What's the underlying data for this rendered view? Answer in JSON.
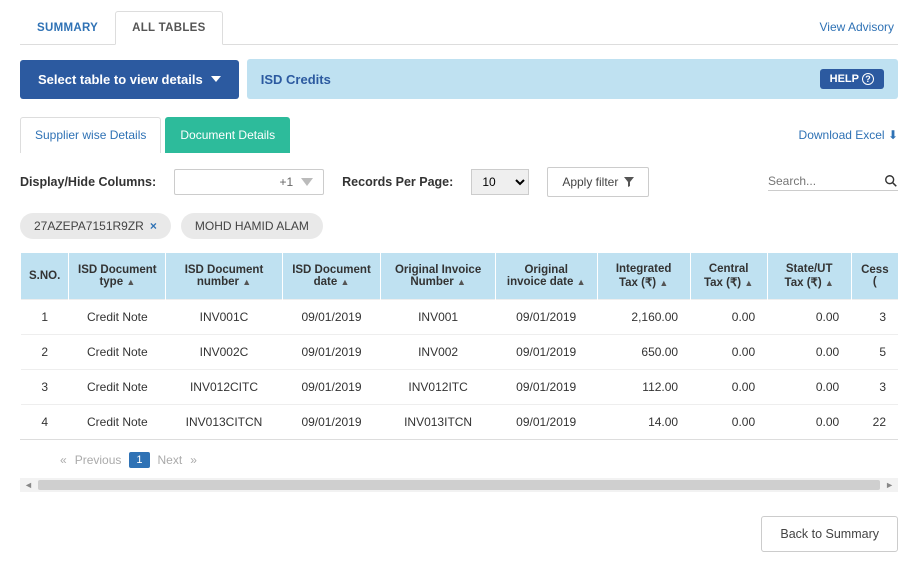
{
  "tabs": {
    "summary": "SUMMARY",
    "all_tables": "ALL TABLES",
    "advisory": "View Advisory"
  },
  "header": {
    "select_btn": "Select table to view details",
    "title": "ISD Credits",
    "help": "HELP"
  },
  "subtabs": {
    "supplier": "Supplier wise Details",
    "document": "Document Details",
    "download": "Download Excel"
  },
  "controls": {
    "columns_label": "Display/Hide Columns:",
    "columns_value": "+1",
    "records_label": "Records Per Page:",
    "records_value": "10",
    "filter_label": "Apply filter",
    "search_placeholder": "Search..."
  },
  "chips": {
    "c0": "27AZEPA7151R9ZR",
    "c1": "MOHD HAMID ALAM"
  },
  "columns": {
    "sno": "S.NO.",
    "doc_type": "ISD Document type",
    "doc_num": "ISD Document number",
    "doc_date": "ISD Document date",
    "orig_inv_num": "Original Invoice Number",
    "orig_inv_date": "Original invoice date",
    "igst": "Integrated Tax (₹)",
    "cgst": "Central Tax (₹)",
    "sgst": "State/UT Tax (₹)",
    "cess": "Cess ("
  },
  "rows": [
    {
      "sno": "1",
      "doc_type": "Credit Note",
      "doc_num": "INV001C",
      "doc_date": "09/01/2019",
      "orig_inv_num": "INV001",
      "orig_inv_date": "09/01/2019",
      "igst": "2,160.00",
      "cgst": "0.00",
      "sgst": "0.00",
      "cess": "3"
    },
    {
      "sno": "2",
      "doc_type": "Credit Note",
      "doc_num": "INV002C",
      "doc_date": "09/01/2019",
      "orig_inv_num": "INV002",
      "orig_inv_date": "09/01/2019",
      "igst": "650.00",
      "cgst": "0.00",
      "sgst": "0.00",
      "cess": "5"
    },
    {
      "sno": "3",
      "doc_type": "Credit Note",
      "doc_num": "INV012CITC",
      "doc_date": "09/01/2019",
      "orig_inv_num": "INV012ITC",
      "orig_inv_date": "09/01/2019",
      "igst": "112.00",
      "cgst": "0.00",
      "sgst": "0.00",
      "cess": "3"
    },
    {
      "sno": "4",
      "doc_type": "Credit Note",
      "doc_num": "INV013CITCN",
      "doc_date": "09/01/2019",
      "orig_inv_num": "INV013ITCN",
      "orig_inv_date": "09/01/2019",
      "igst": "14.00",
      "cgst": "0.00",
      "sgst": "0.00",
      "cess": "22"
    }
  ],
  "pager": {
    "prev": "Previous",
    "page": "1",
    "next": "Next"
  },
  "footer": {
    "back": "Back to Summary"
  }
}
